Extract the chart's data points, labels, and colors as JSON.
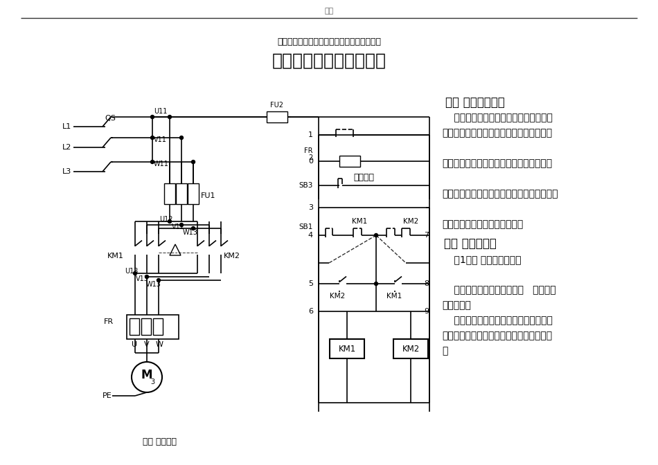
{
  "page_title": "完善",
  "subtitle": "双重联锁〔按钮、接触器〕正反转掌握电原图",
  "main_title": "电机双重联锁正反转掌握",
  "section1_title": "一、 线的运用场合",
  "section1_lines": [
    "    正反转掌握运用生产机械要求运动部件",
    "能向正反两个方向运动的场合。如机床工作",
    "",
    "台电机的前进与后退掌握；万能铣床主轴的",
    "",
    "正反转掌握；圆板机的辊子的正反转；电梯、",
    "",
    "起重机的上升与下掌握等场所。"
  ],
  "section2_title": "二、 掌握原分析",
  "section2_lines": [
    "    〔1〕、 掌握功能分析：",
    "",
    "    怎样才能实现正反转掌握？   为什么要",
    "实现联锁？",
    "    电机要实现正反转掌握：将其电源的相",
    "序中任意两相对调即可〔简称换相〕，通常",
    "是"
  ],
  "footer": "专业 学问共享",
  "bg_color": "#ffffff"
}
